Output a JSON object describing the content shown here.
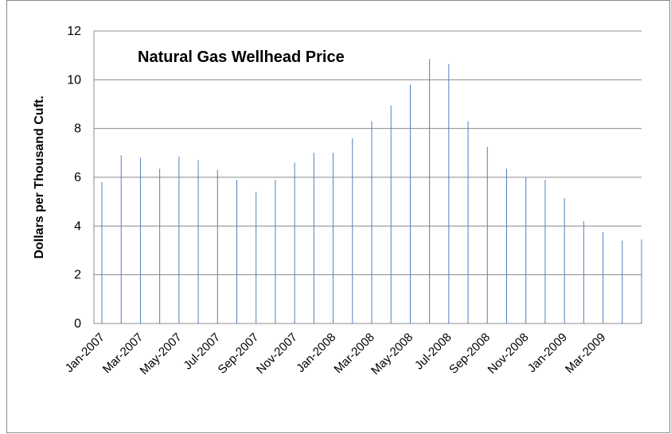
{
  "chart_data": {
    "type": "bar",
    "title": "Natural Gas Wellhead Price",
    "y_label": "Dollars per Thousand Cuft.",
    "categories": [
      "Jan-2007",
      null,
      "Mar-2007",
      null,
      "May-2007",
      null,
      "Jul-2007",
      null,
      "Sep-2007",
      null,
      "Nov-2007",
      null,
      "Jan-2008",
      null,
      "Mar-2008",
      null,
      "May-2008",
      null,
      "Jul-2008",
      null,
      "Sep-2008",
      null,
      "Nov-2008",
      null,
      "Jan-2009",
      null,
      "Mar-2009",
      null,
      null
    ],
    "values": [
      5.8,
      6.9,
      6.8,
      6.35,
      6.85,
      6.7,
      6.3,
      5.9,
      5.4,
      5.9,
      6.6,
      7.0,
      7.0,
      7.6,
      8.3,
      8.95,
      9.8,
      10.85,
      10.65,
      8.3,
      7.25,
      6.35,
      6.0,
      5.9,
      5.15,
      4.2,
      3.75,
      3.4,
      3.45
    ],
    "color": "#4f81bd",
    "ylim": [
      0,
      12
    ],
    "yticks": [
      0,
      2,
      4,
      6,
      8,
      10,
      12
    ],
    "grid": true
  }
}
